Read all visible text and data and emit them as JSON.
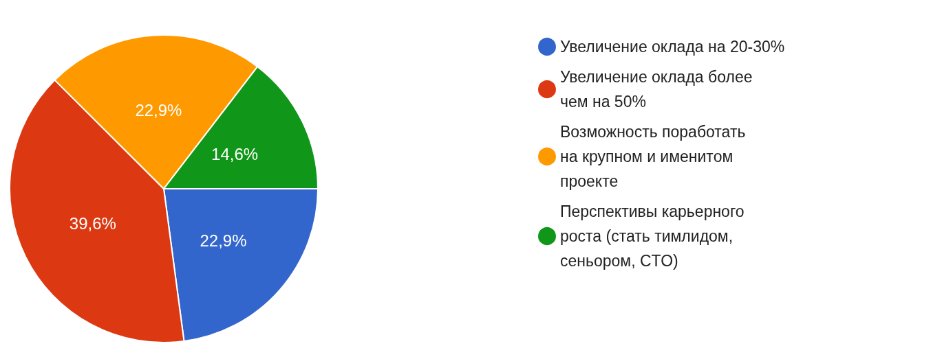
{
  "chart_data": {
    "type": "pie",
    "categories": [
      "Увеличение оклада на 20-30%",
      "Увеличение оклада более чем на 50%",
      "Возможность поработать на крупном и именитом проекте",
      "Перспективы карьерного роста (стать тимлидом, сеньором, CTO)"
    ],
    "values": [
      22.9,
      39.6,
      22.9,
      14.6
    ],
    "value_labels": [
      "22,9%",
      "39,6%",
      "22,9%",
      "14,6%"
    ],
    "colors": [
      "#3366cc",
      "#dc3912",
      "#ff9900",
      "#109618"
    ],
    "legend": "right"
  }
}
